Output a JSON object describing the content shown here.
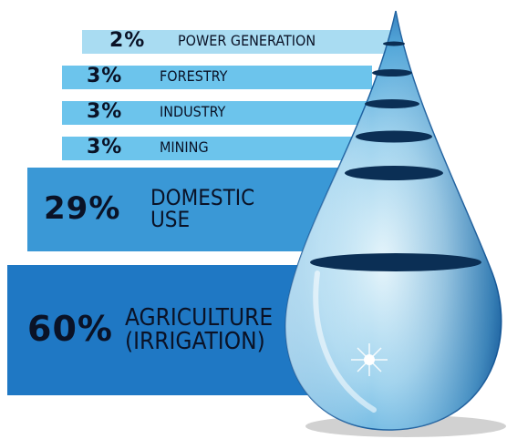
{
  "chart_data": {
    "type": "bar",
    "orientation": "horizontal",
    "title": "",
    "xlabel": "",
    "ylabel": "",
    "categories": [
      "POWER GENERATION",
      "FORESTRY",
      "INDUSTRY",
      "MINING",
      "DOMESTIC\nUSE",
      "AGRICULTURE\n(IRRIGATION)"
    ],
    "values": [
      2,
      3,
      3,
      3,
      29,
      60
    ],
    "value_labels": [
      "2%",
      "3%",
      "3%",
      "3%",
      "29%",
      "60%"
    ],
    "colors": [
      "#a9dcf2",
      "#6cc4ec",
      "#6cc4ec",
      "#6cc4ec",
      "#3a98d6",
      "#1f78c4"
    ],
    "decoration": "water-drop-icon",
    "grid": false,
    "legend": "none"
  }
}
